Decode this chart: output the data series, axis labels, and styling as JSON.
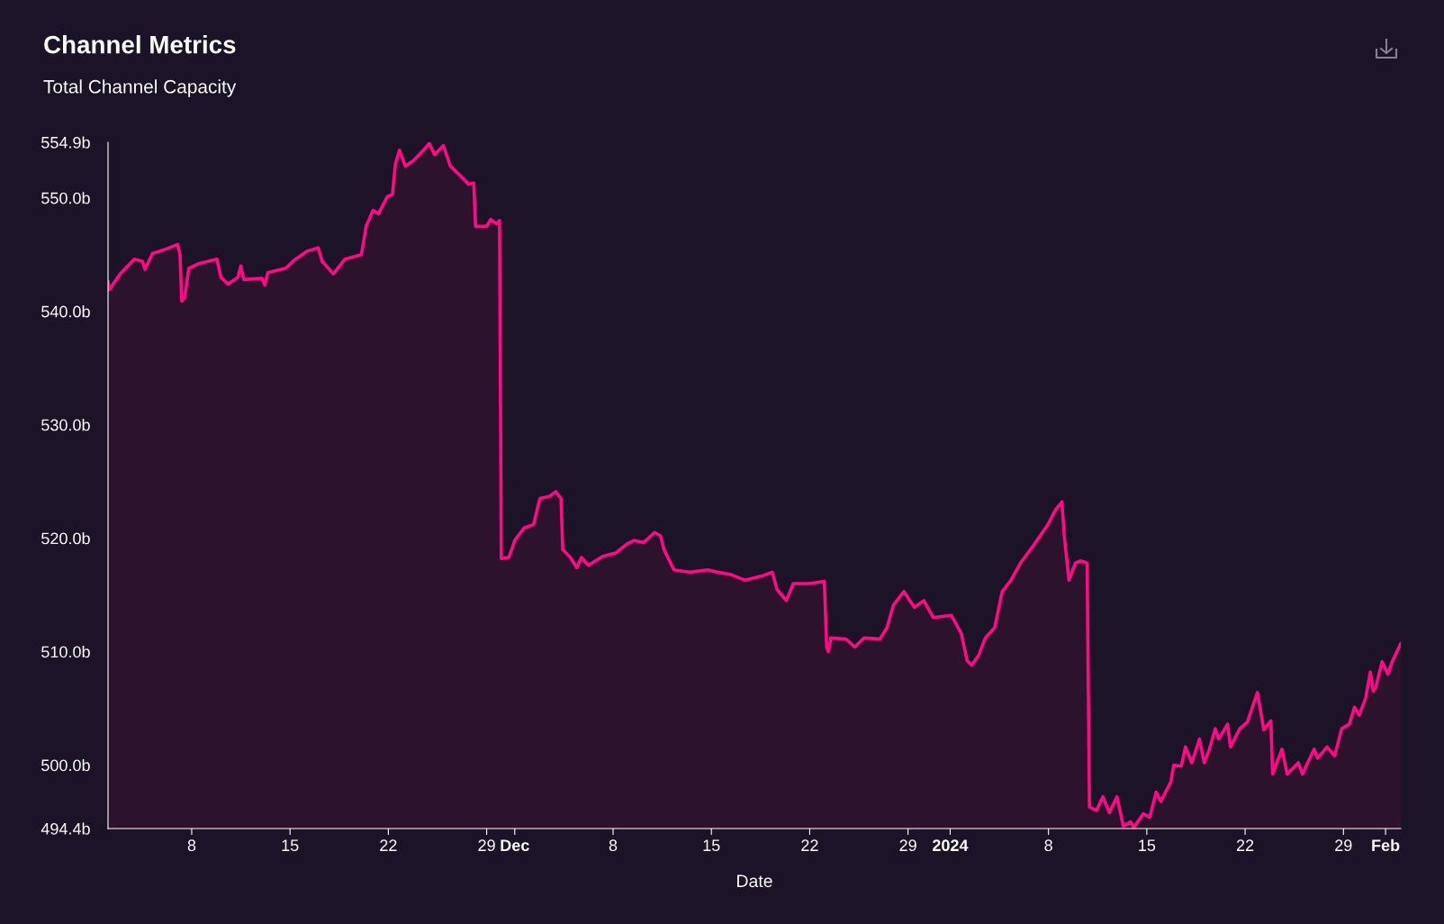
{
  "chart_data": {
    "type": "area",
    "title": "Channel Metrics",
    "subtitle": "Total Channel Capacity",
    "xlabel": "Date",
    "x": [
      "2023-11-02T01:00",
      "2023-11-02T03:00",
      "2023-11-02T22:00",
      "2023-11-03T22:00",
      "2023-11-04T12:00",
      "2023-11-04T16:00",
      "2023-11-05T05:00",
      "2023-11-06T05:00",
      "2023-11-07T00:00",
      "2023-11-07T04:00",
      "2023-11-07T07:00",
      "2023-11-07T12:00",
      "2023-11-07T19:00",
      "2023-11-08T12:00",
      "2023-11-09T19:00",
      "2023-11-10T02:00",
      "2023-11-10T14:00",
      "2023-11-11T07:00",
      "2023-11-11T12:00",
      "2023-11-11T17:00",
      "2023-11-13T00:00",
      "2023-11-13T05:00",
      "2023-11-13T10:00",
      "2023-11-14T17:00",
      "2023-11-15T07:00",
      "2023-11-16T05:00",
      "2023-11-17T00:00",
      "2023-11-17T07:00",
      "2023-11-18T02:00",
      "2023-11-18T22:00",
      "2023-11-20T02:00",
      "2023-11-20T10:00",
      "2023-11-20T22:00",
      "2023-11-21T07:00",
      "2023-11-21T22:00",
      "2023-11-22T07:00",
      "2023-11-22T12:00",
      "2023-11-22T19:00",
      "2023-11-23T05:00",
      "2023-11-23T19:00",
      "2023-11-24T12:00",
      "2023-11-24T22:00",
      "2023-11-25T07:00",
      "2023-11-25T22:00",
      "2023-11-26T10:00",
      "2023-11-27T02:00",
      "2023-11-27T17:00",
      "2023-11-28T02:00",
      "2023-11-28T05:00",
      "2023-11-29T00:00",
      "2023-11-29T07:00",
      "2023-11-29T17:00",
      "2023-11-29T22:00",
      "2023-11-30T01:00",
      "2023-11-30T14:00",
      "2023-12-01T00:00",
      "2023-12-01T16:00",
      "2023-12-02T08:00",
      "2023-12-02T19:00",
      "2023-12-03T12:00",
      "2023-12-03T22:00",
      "2023-12-04T07:00",
      "2023-12-04T10:00",
      "2023-12-04T23:00",
      "2023-12-05T10:00",
      "2023-12-05T18:00",
      "2023-12-06T06:00",
      "2023-12-07T06:00",
      "2023-12-08T05:00",
      "2023-12-09T00:00",
      "2023-12-09T12:00",
      "2023-12-10T04:00",
      "2023-12-10T23:00",
      "2023-12-11T09:00",
      "2023-12-11T15:00",
      "2023-12-12T08:00",
      "2023-12-13T11:00",
      "2023-12-14T18:00",
      "2023-12-15T10:00",
      "2023-12-16T09:00",
      "2023-12-17T09:00",
      "2023-12-18T16:00",
      "2023-12-19T08:00",
      "2023-12-19T16:00",
      "2023-12-20T08:00",
      "2023-12-20T20:00",
      "2023-12-21T23:00",
      "2023-12-23T01:00",
      "2023-12-23T05:00",
      "2023-12-23T08:00",
      "2023-12-23T12:00",
      "2023-12-24T14:00",
      "2023-12-25T05:00",
      "2023-12-25T21:00",
      "2023-12-27T00:00",
      "2023-12-27T12:00",
      "2023-12-27T23:00",
      "2023-12-28T17:00",
      "2023-12-29T03:00",
      "2023-12-29T11:00",
      "2023-12-30T03:00",
      "2023-12-30T19:00",
      "2024-01-01T02:00",
      "2024-01-01T19:00",
      "2024-01-02T05:00",
      "2024-01-02T13:00",
      "2024-01-03T01:00",
      "2024-01-03T12:00",
      "2024-01-04T04:00",
      "2024-01-04T17:00",
      "2024-01-05T08:00",
      "2024-01-06T00:00",
      "2024-01-06T23:00",
      "2024-01-07T23:00",
      "2024-01-08T12:00",
      "2024-01-08T23:00",
      "2024-01-09T03:00",
      "2024-01-09T11:00",
      "2024-01-09T22:00",
      "2024-01-10T07:00",
      "2024-01-10T18:00",
      "2024-01-10T22:00",
      "2024-01-11T10:00",
      "2024-01-11T21:00",
      "2024-01-12T08:00",
      "2024-01-12T21:00",
      "2024-01-13T08:00",
      "2024-01-13T20:00",
      "2024-01-14T02:00",
      "2024-01-14T18:00",
      "2024-01-15T05:00",
      "2024-01-15T16:00",
      "2024-01-16T00:00",
      "2024-01-16T17:00",
      "2024-01-16T22:00",
      "2024-01-17T11:00",
      "2024-01-17T18:00",
      "2024-01-18T05:00",
      "2024-01-18T18:00",
      "2024-01-19T02:00",
      "2024-01-19T11:00",
      "2024-01-19T21:00",
      "2024-01-20T03:00",
      "2024-01-20T18:00",
      "2024-01-20T23:00",
      "2024-01-21T15:00",
      "2024-01-22T04:00",
      "2024-01-22T21:00",
      "2024-01-23T08:00",
      "2024-01-23T20:00",
      "2024-01-23T23:00",
      "2024-01-24T15:00",
      "2024-01-25T00:00",
      "2024-01-25T19:00",
      "2024-01-26T02:00",
      "2024-01-26T22:00",
      "2024-01-27T04:00",
      "2024-01-27T20:00",
      "2024-01-28T09:00",
      "2024-01-28T21:00",
      "2024-01-29T10:00",
      "2024-01-29T19:00",
      "2024-01-30T03:00",
      "2024-01-30T14:00",
      "2024-01-30T22:00",
      "2024-01-31T03:00",
      "2024-01-31T07:00",
      "2024-01-31T18:00",
      "2024-02-01T04:00",
      "2024-02-01T12:00",
      "2024-02-02T02:00"
    ],
    "series": [
      {
        "color": "#ff0a85",
        "values": [
          542.6,
          541.9,
          543.3,
          544.6,
          544.4,
          543.7,
          545.1,
          545.5,
          545.9,
          545.0,
          540.9,
          541.2,
          543.8,
          544.2,
          544.6,
          543.0,
          542.4,
          543.0,
          544.0,
          542.8,
          542.9,
          542.3,
          543.4,
          543.8,
          544.5,
          545.3,
          545.6,
          544.4,
          543.3,
          544.6,
          545.0,
          547.5,
          548.9,
          548.6,
          550.1,
          550.3,
          553.0,
          554.2,
          552.8,
          553.3,
          554.2,
          554.8,
          553.8,
          554.6,
          552.8,
          552.0,
          551.2,
          551.3,
          547.5,
          547.5,
          548.1,
          547.7,
          548.0,
          518.2,
          518.3,
          519.8,
          520.9,
          521.2,
          523.5,
          523.7,
          524.1,
          523.5,
          519.0,
          518.3,
          517.4,
          518.3,
          517.6,
          518.4,
          518.7,
          519.5,
          519.8,
          519.6,
          520.5,
          520.2,
          519.0,
          517.2,
          517.0,
          517.2,
          517.0,
          516.8,
          516.3,
          516.7,
          517.0,
          515.5,
          514.5,
          516.0,
          516.0,
          516.2,
          510.4,
          510.0,
          511.2,
          511.1,
          510.4,
          511.2,
          511.1,
          512.1,
          514.1,
          515.3,
          514.5,
          513.9,
          514.5,
          513.0,
          513.2,
          511.6,
          509.2,
          508.8,
          509.7,
          511.2,
          512.1,
          515.3,
          516.3,
          517.8,
          519.4,
          521.2,
          522.5,
          523.2,
          520.2,
          516.3,
          517.8,
          518.0,
          517.8,
          496.3,
          496.0,
          497.2,
          495.8,
          497.2,
          494.6,
          495.0,
          494.5,
          495.7,
          495.4,
          497.6,
          496.8,
          498.5,
          500.0,
          499.9,
          501.6,
          500.2,
          502.3,
          500.2,
          501.4,
          503.2,
          502.3,
          503.6,
          501.6,
          503.2,
          503.8,
          506.4,
          503.1,
          503.9,
          499.2,
          501.4,
          499.2,
          500.2,
          499.2,
          501.4,
          500.6,
          501.6,
          500.8,
          503.2,
          503.6,
          505.1,
          504.4,
          505.9,
          508.2,
          506.5,
          506.8,
          509.1,
          508.0,
          509.2,
          510.7
        ]
      }
    ],
    "xlim": [
      "2023-11-02T01:00",
      "2024-02-02T02:00"
    ],
    "xticks": [
      {
        "value": "2023-11-08",
        "label": "8"
      },
      {
        "value": "2023-11-15",
        "label": "15"
      },
      {
        "value": "2023-11-22",
        "label": "22"
      },
      {
        "value": "2023-11-29",
        "label": "29"
      },
      {
        "value": "2023-12-01",
        "label": "Dec"
      },
      {
        "value": "2023-12-08",
        "label": "8"
      },
      {
        "value": "2023-12-15",
        "label": "15"
      },
      {
        "value": "2023-12-22",
        "label": "22"
      },
      {
        "value": "2023-12-29",
        "label": "29"
      },
      {
        "value": "2024-01-01",
        "label": "2024"
      },
      {
        "value": "2024-01-08",
        "label": "8"
      },
      {
        "value": "2024-01-15",
        "label": "15"
      },
      {
        "value": "2024-01-22",
        "label": "22"
      },
      {
        "value": "2024-01-29",
        "label": "29"
      },
      {
        "value": "2024-02-01",
        "label": "Feb"
      }
    ],
    "ylim": [
      494.4,
      554.9
    ],
    "yticks": [
      {
        "value": 494.4,
        "label": "494.4b"
      },
      {
        "value": 500,
        "label": "500.0b"
      },
      {
        "value": 510,
        "label": "510.0b"
      },
      {
        "value": 520,
        "label": "520.0b"
      },
      {
        "value": 530,
        "label": "530.0b"
      },
      {
        "value": 540,
        "label": "540.0b"
      },
      {
        "value": 550,
        "label": "550.0b"
      },
      {
        "value": 554.9,
        "label": "554.9b"
      }
    ],
    "grid": false,
    "legend": false,
    "marker": "none",
    "line_style": "solid"
  }
}
